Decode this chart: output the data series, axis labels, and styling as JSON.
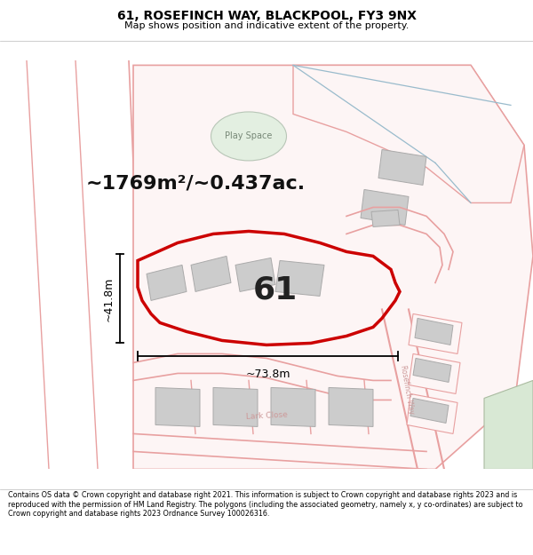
{
  "title": "61, ROSEFINCH WAY, BLACKPOOL, FY3 9NX",
  "subtitle": "Map shows position and indicative extent of the property.",
  "footer": "Contains OS data © Crown copyright and database right 2021. This information is subject to Crown copyright and database rights 2023 and is reproduced with the permission of HM Land Registry. The polygons (including the associated geometry, namely x, y co-ordinates) are subject to Crown copyright and database rights 2023 Ordnance Survey 100026316.",
  "area_text": "~1769m²/~0.437ac.",
  "label_number": "61",
  "dim_width": "~73.8m",
  "dim_height": "~41.8m",
  "play_space_label": "Play Space",
  "lark_close_label": "Lark Close",
  "rosefinch_way_label": "Rosefinch Way",
  "map_bg": "#ffffff",
  "highlight_color": "#cc0000",
  "outline_color": "#e8a0a0",
  "building_color": "#cccccc",
  "playspace_fill": "#ddeedd",
  "playspace_edge": "#aabbaa",
  "blue_color": "#99bbcc",
  "green_fill": "#d4e8d4",
  "title_fontsize": 10,
  "subtitle_fontsize": 8,
  "footer_fontsize": 5.8,
  "area_fontsize": 16,
  "number_fontsize": 26,
  "dim_fontsize": 9
}
